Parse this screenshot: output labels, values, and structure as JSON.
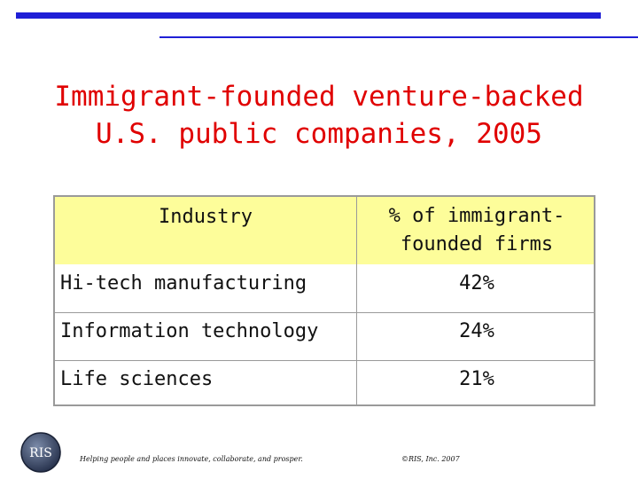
{
  "title": {
    "line1": "Immigrant-founded venture-backed",
    "line2": "U.S. public companies, 2005"
  },
  "table": {
    "headers": {
      "industry": "Industry",
      "percent_line1": "% of immigrant-",
      "percent_line2": "founded firms"
    },
    "rows": [
      {
        "industry": "Hi-tech manufacturing",
        "percent": "42%"
      },
      {
        "industry": "Information technology",
        "percent": "24%"
      },
      {
        "industry": "Life sciences",
        "percent": "21%"
      }
    ]
  },
  "footer": {
    "logo_text": "RIS",
    "tagline": "Helping people and places innovate, collaborate, and prosper.",
    "copyright": "©RIS, Inc. 2007"
  },
  "colors": {
    "accent_blue": "#1f1fd6",
    "title_red": "#e00000",
    "header_yellow": "#fdfd9a"
  }
}
